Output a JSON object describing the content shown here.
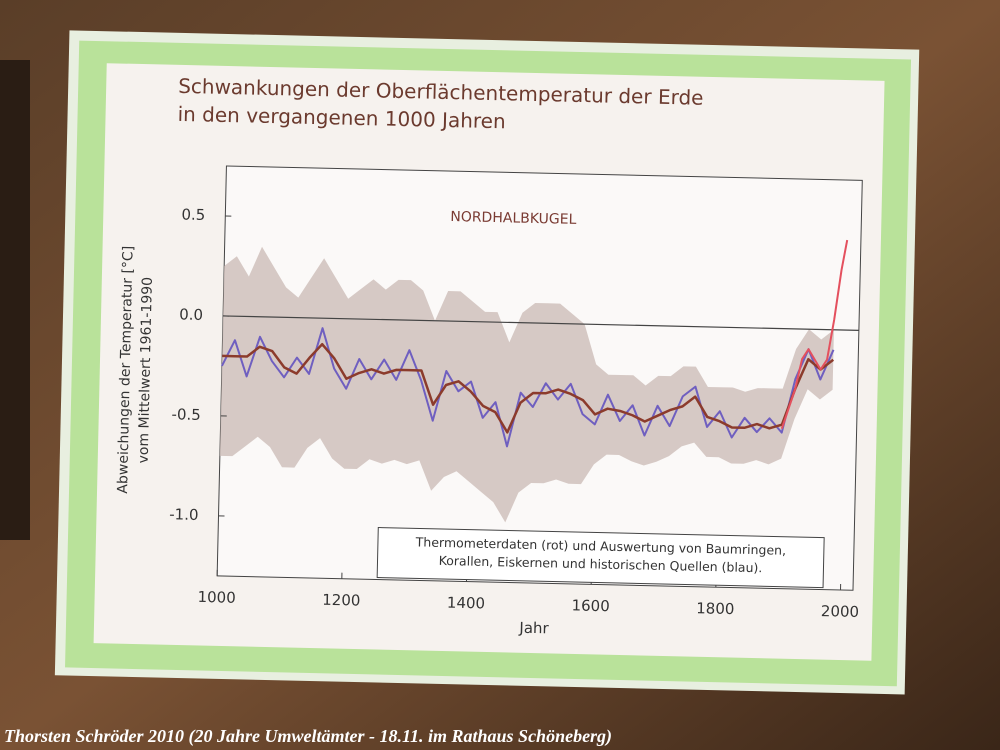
{
  "chart_data": {
    "type": "line",
    "title": [
      "Schwankungen der Oberflächentemperatur der Erde",
      "in den vergangenen 1000 Jahren"
    ],
    "subtitle": "NORDHALBKUGEL",
    "ylabel": [
      "Abweichungen der Temperatur [°C]",
      "vom Mittelwert 1961-1990"
    ],
    "xlabel": "Jahr",
    "annotation": [
      "Thermometerdaten (rot) und Auswertung von Baumringen,",
      "Korallen, Eiskernen und historischen Quellen (blau)."
    ],
    "xlim": [
      1000,
      2020
    ],
    "ylim": [
      -1.3,
      0.75
    ],
    "xticks": [
      1000,
      1200,
      1400,
      1600,
      1800,
      2000
    ],
    "yticks": [
      0.5,
      {
        "value": 0,
        "label": "0.0"
      },
      -0.5,
      {
        "value": -1,
        "label": "-1.0"
      }
    ],
    "band": {
      "color": "#cdbdb8",
      "x": [
        1000,
        1020,
        1040,
        1060,
        1080,
        1100,
        1120,
        1140,
        1160,
        1180,
        1200,
        1220,
        1240,
        1260,
        1280,
        1300,
        1320,
        1340,
        1360,
        1380,
        1400,
        1420,
        1440,
        1460,
        1480,
        1500,
        1520,
        1540,
        1560,
        1580,
        1600,
        1620,
        1640,
        1660,
        1680,
        1700,
        1720,
        1740,
        1760,
        1780,
        1800,
        1820,
        1840,
        1860,
        1880,
        1900,
        1920,
        1940,
        1960,
        1980
      ],
      "upper": [
        0.25,
        0.3,
        0.2,
        0.35,
        0.25,
        0.15,
        0.1,
        0.2,
        0.3,
        0.2,
        0.1,
        0.15,
        0.2,
        0.15,
        0.2,
        0.2,
        0.15,
        0.0,
        0.15,
        0.15,
        0.1,
        0.05,
        0.05,
        -0.1,
        0.05,
        0.1,
        0.1,
        0.1,
        0.05,
        0.0,
        -0.2,
        -0.25,
        -0.25,
        -0.25,
        -0.3,
        -0.25,
        -0.25,
        -0.2,
        -0.2,
        -0.3,
        -0.3,
        -0.3,
        -0.32,
        -0.3,
        -0.3,
        -0.3,
        -0.1,
        0.0,
        -0.05,
        0.0
      ],
      "lower": [
        -0.7,
        -0.7,
        -0.65,
        -0.6,
        -0.65,
        -0.75,
        -0.75,
        -0.65,
        -0.6,
        -0.7,
        -0.75,
        -0.75,
        -0.7,
        -0.72,
        -0.7,
        -0.72,
        -0.7,
        -0.85,
        -0.78,
        -0.75,
        -0.8,
        -0.85,
        -0.9,
        -1.0,
        -0.85,
        -0.8,
        -0.8,
        -0.78,
        -0.8,
        -0.8,
        -0.7,
        -0.65,
        -0.65,
        -0.68,
        -0.7,
        -0.68,
        -0.65,
        -0.6,
        -0.58,
        -0.65,
        -0.65,
        -0.68,
        -0.68,
        -0.66,
        -0.68,
        -0.65,
        -0.45,
        -0.3,
        -0.35,
        -0.3
      ]
    },
    "series": [
      {
        "color": "#6f5fc0",
        "width": 2,
        "x": [
          1000,
          1020,
          1040,
          1060,
          1080,
          1100,
          1120,
          1140,
          1160,
          1180,
          1200,
          1220,
          1240,
          1260,
          1280,
          1300,
          1320,
          1340,
          1360,
          1380,
          1400,
          1420,
          1440,
          1460,
          1480,
          1500,
          1520,
          1540,
          1560,
          1580,
          1600,
          1620,
          1640,
          1660,
          1680,
          1700,
          1720,
          1740,
          1760,
          1780,
          1800,
          1820,
          1840,
          1860,
          1880,
          1900,
          1920,
          1940,
          1960,
          1980
        ],
        "values": [
          -0.25,
          -0.12,
          -0.3,
          -0.1,
          -0.22,
          -0.3,
          -0.2,
          -0.28,
          -0.05,
          -0.25,
          -0.35,
          -0.2,
          -0.3,
          -0.2,
          -0.3,
          -0.15,
          -0.3,
          -0.5,
          -0.25,
          -0.35,
          -0.3,
          -0.48,
          -0.4,
          -0.62,
          -0.35,
          -0.42,
          -0.3,
          -0.38,
          -0.3,
          -0.45,
          -0.5,
          -0.35,
          -0.48,
          -0.4,
          -0.55,
          -0.4,
          -0.5,
          -0.35,
          -0.3,
          -0.5,
          -0.42,
          -0.55,
          -0.45,
          -0.52,
          -0.45,
          -0.52,
          -0.25,
          -0.1,
          -0.25,
          -0.1
        ]
      },
      {
        "color": "#8c3b2c",
        "width": 2.5,
        "x": [
          1000,
          1020,
          1040,
          1060,
          1080,
          1100,
          1120,
          1140,
          1160,
          1180,
          1200,
          1220,
          1240,
          1260,
          1280,
          1300,
          1320,
          1340,
          1360,
          1380,
          1400,
          1420,
          1440,
          1460,
          1480,
          1500,
          1520,
          1540,
          1560,
          1580,
          1600,
          1620,
          1640,
          1660,
          1680,
          1700,
          1720,
          1740,
          1760,
          1780,
          1800,
          1820,
          1840,
          1860,
          1880,
          1900,
          1920,
          1940,
          1960,
          1980
        ],
        "values": [
          -0.2,
          -0.2,
          -0.2,
          -0.15,
          -0.17,
          -0.25,
          -0.28,
          -0.2,
          -0.13,
          -0.2,
          -0.3,
          -0.27,
          -0.25,
          -0.27,
          -0.25,
          -0.25,
          -0.25,
          -0.42,
          -0.32,
          -0.3,
          -0.35,
          -0.42,
          -0.45,
          -0.55,
          -0.4,
          -0.35,
          -0.35,
          -0.33,
          -0.35,
          -0.38,
          -0.45,
          -0.42,
          -0.43,
          -0.45,
          -0.48,
          -0.45,
          -0.42,
          -0.4,
          -0.35,
          -0.45,
          -0.47,
          -0.5,
          -0.5,
          -0.48,
          -0.5,
          -0.48,
          -0.3,
          -0.15,
          -0.2,
          -0.15
        ]
      },
      {
        "color": "#e4505e",
        "width": 2,
        "x": [
          1900,
          1910,
          1920,
          1930,
          1940,
          1950,
          1960,
          1970,
          1980,
          1990,
          1998
        ],
        "values": [
          -0.5,
          -0.4,
          -0.3,
          -0.15,
          -0.1,
          -0.15,
          -0.2,
          -0.15,
          0.05,
          0.3,
          0.45
        ]
      }
    ]
  },
  "caption": "Thorsten Schröder 2010 (20 Jahre Umweltämter - 18.11. im Rathaus Schöneberg)"
}
